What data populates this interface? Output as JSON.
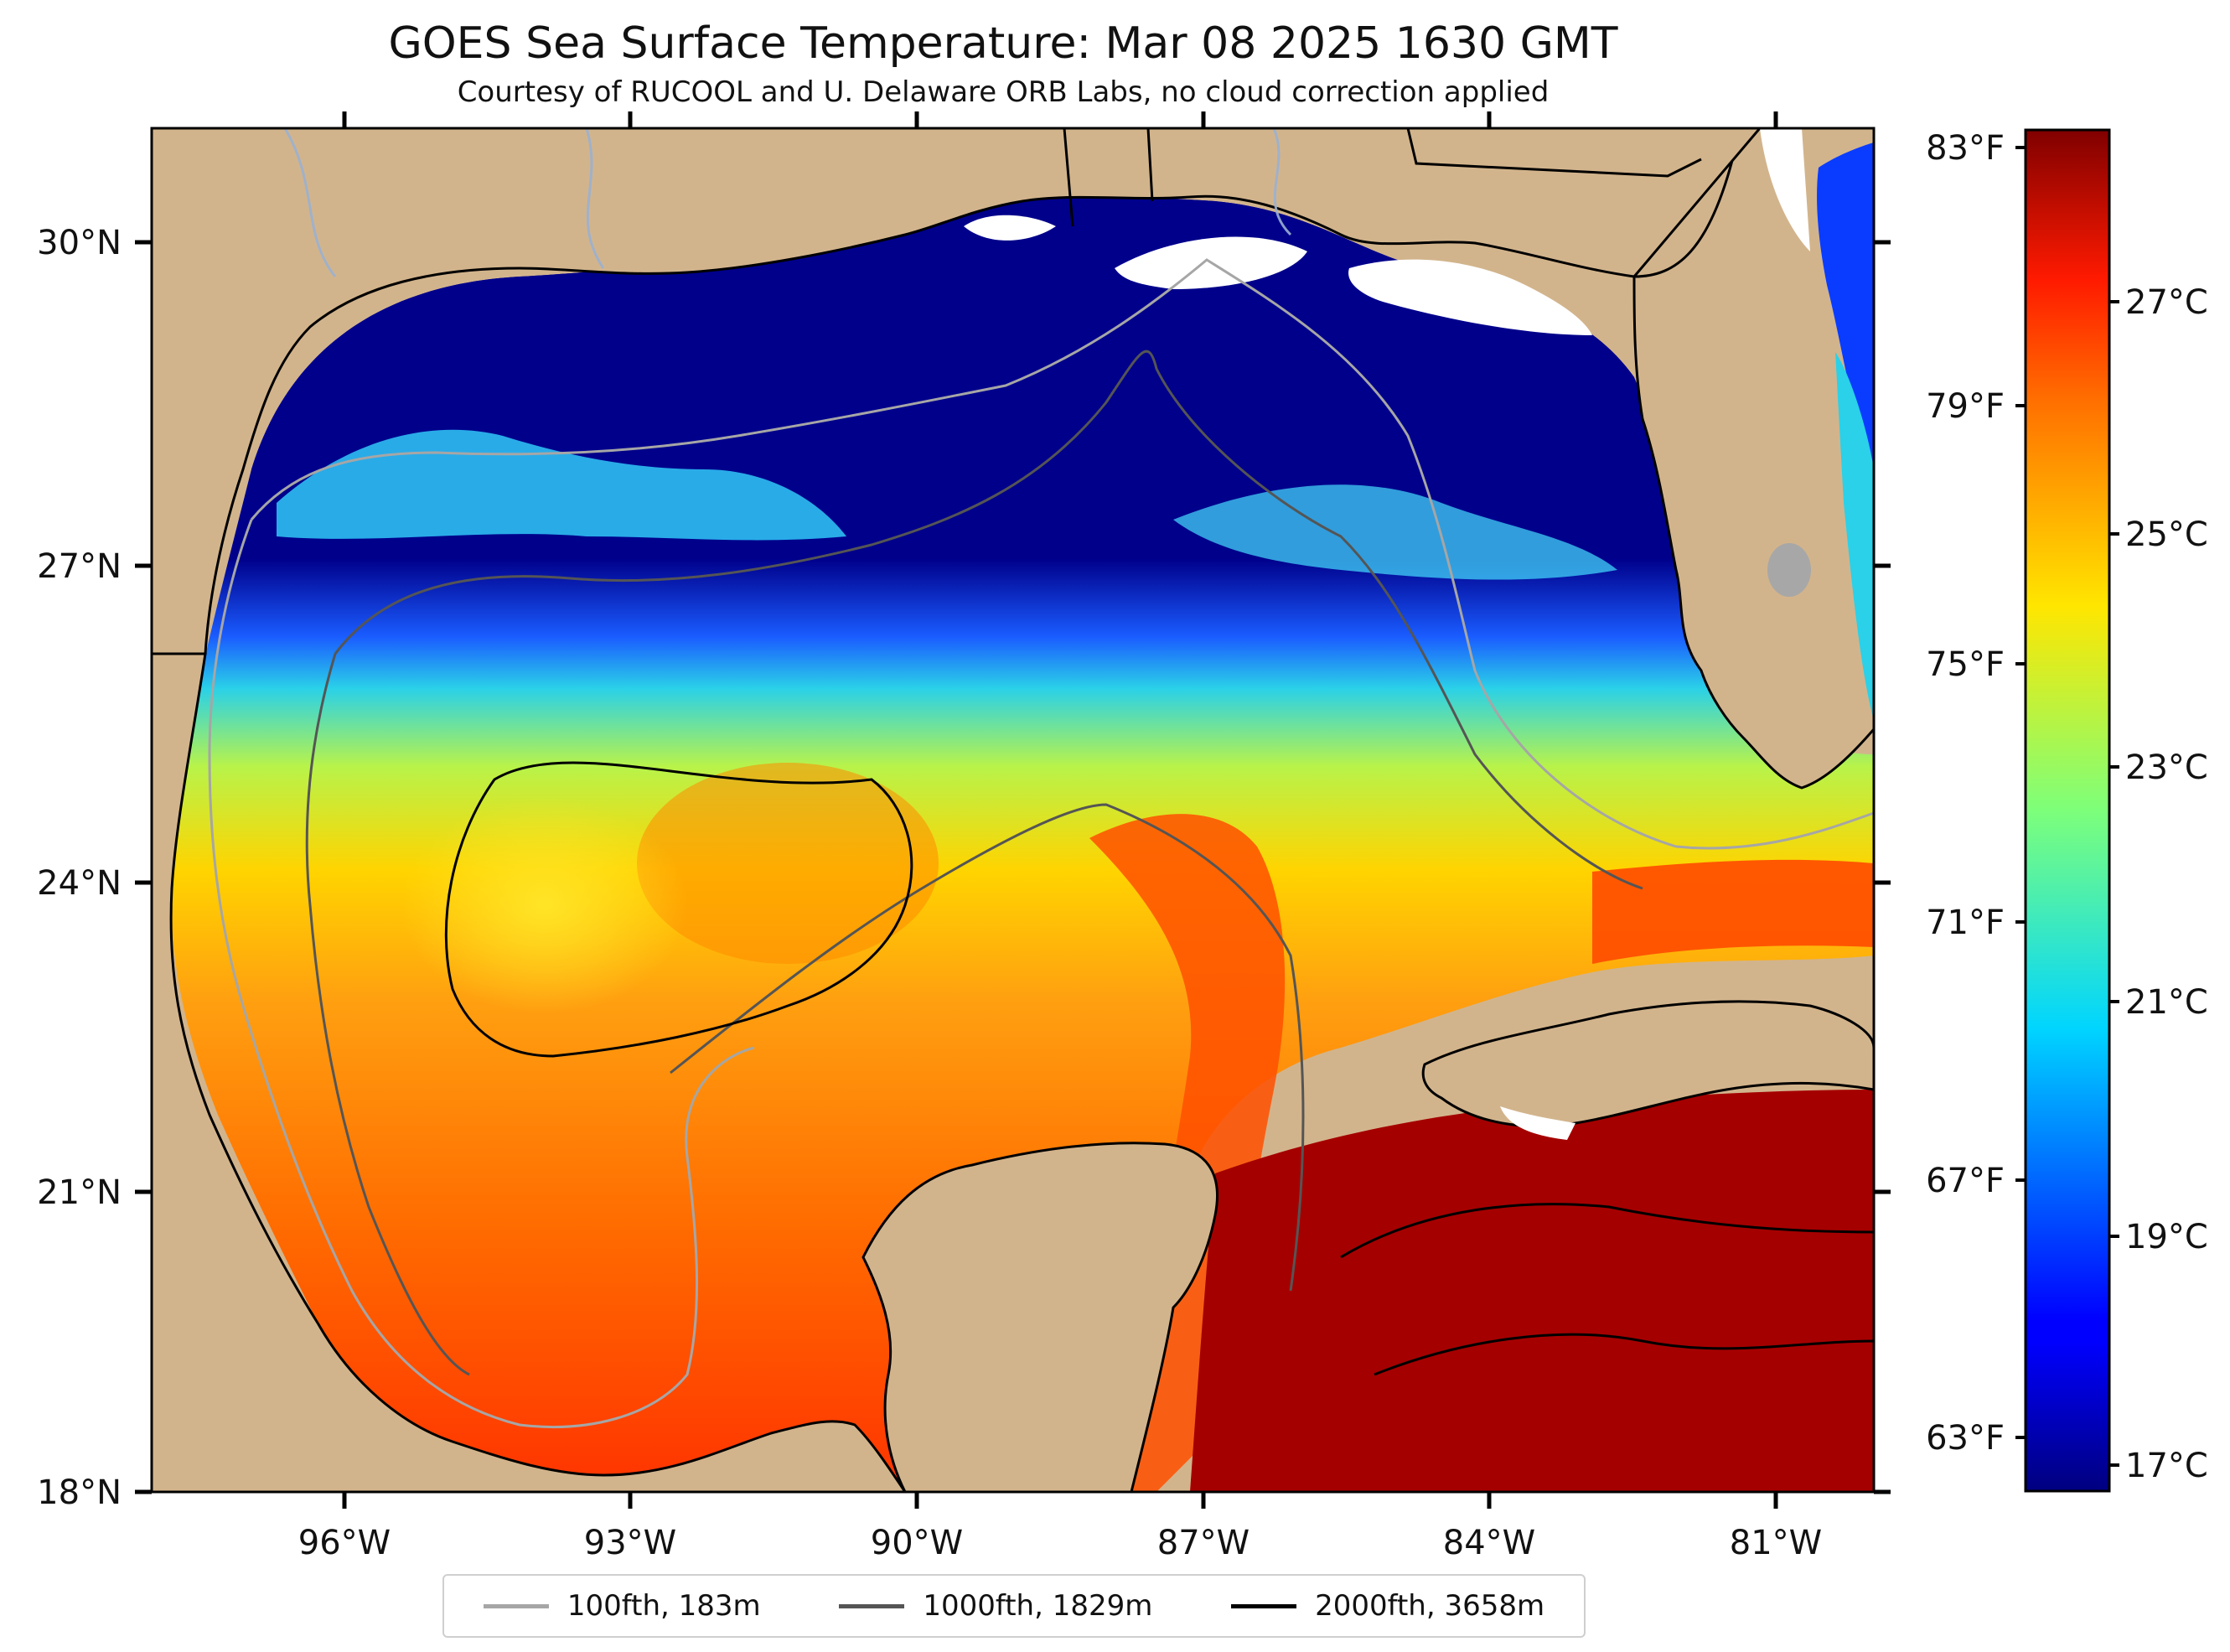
{
  "figure": {
    "title": "GOES Sea Surface Temperature: Mar 08 2025 1630 GMT",
    "subtitle": "Courtesy of RUCOOL and U. Delaware ORB Labs, no cloud correction applied"
  },
  "map": {
    "lon_range": [
      -98,
      -80
    ],
    "lat_range": [
      18,
      31
    ],
    "lon_ticks": [
      "96°W",
      "93°W",
      "90°W",
      "87°W",
      "84°W",
      "81°W"
    ],
    "lat_ticks": [
      "18°N",
      "21°N",
      "24°N",
      "27°N",
      "30°N"
    ],
    "colors": {
      "land": "#d2b48c",
      "cloud": "#ffffff",
      "coast": "#000000"
    }
  },
  "colorbar": {
    "colormap": "jet",
    "range_c": [
      16.5,
      28.5
    ],
    "f_ticks": [
      "63°F",
      "67°F",
      "71°F",
      "75°F",
      "79°F",
      "83°F"
    ],
    "c_ticks": [
      "17°C",
      "19°C",
      "21°C",
      "23°C",
      "25°C",
      "27°C"
    ]
  },
  "legend": {
    "items": [
      {
        "label": "100fth, 183m",
        "color": "#a6a6a6"
      },
      {
        "label": "1000fth, 1829m",
        "color": "#555555"
      },
      {
        "label": "2000fth, 3658m",
        "color": "#000000"
      }
    ]
  }
}
